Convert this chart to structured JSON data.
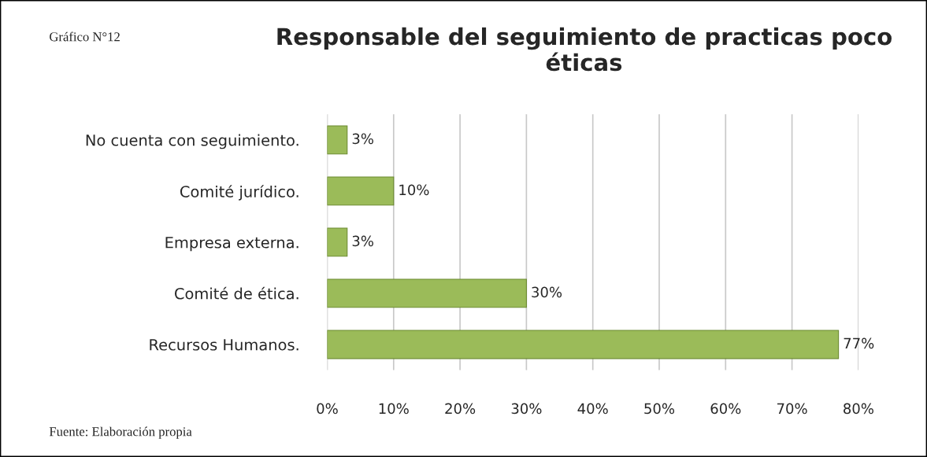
{
  "chart_data": {
    "type": "bar",
    "orientation": "horizontal",
    "title": "Responsable del seguimiento de practicas poco éticas",
    "categories": [
      "No cuenta con seguimiento.",
      "Comité jurídico.",
      "Empresa externa.",
      "Comité de ética.",
      "Recursos Humanos."
    ],
    "values": [
      3,
      10,
      3,
      30,
      77
    ],
    "color": "#9bbb59",
    "value_labels": [
      "3%",
      "10%",
      "3%",
      "30%",
      "77%"
    ],
    "xlim": [
      0,
      80
    ],
    "xticks": [
      {
        "value": 0,
        "label": "0%"
      },
      {
        "value": 10,
        "label": "10%"
      },
      {
        "value": 20,
        "label": "20%"
      },
      {
        "value": 30,
        "label": "30%"
      },
      {
        "value": 40,
        "label": "40%"
      },
      {
        "value": 50,
        "label": "50%"
      },
      {
        "value": 60,
        "label": "60%"
      },
      {
        "value": 70,
        "label": "70%"
      },
      {
        "value": 80,
        "label": "80%"
      }
    ],
    "grid": "x",
    "legend": false,
    "annotations": [
      "Gráfico N°12",
      "Fuente: Elaboración propia"
    ]
  }
}
